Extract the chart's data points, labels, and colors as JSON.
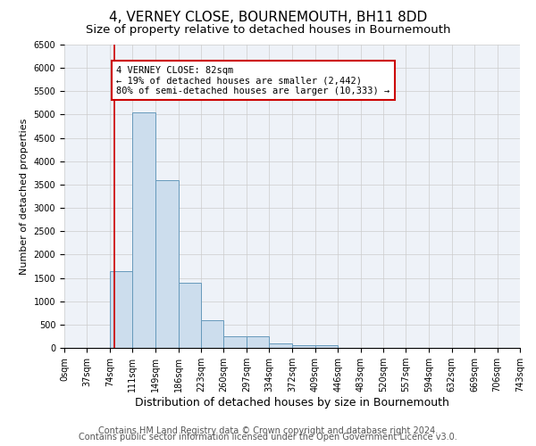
{
  "title": "4, VERNEY CLOSE, BOURNEMOUTH, BH11 8DD",
  "subtitle": "Size of property relative to detached houses in Bournemouth",
  "xlabel": "Distribution of detached houses by size in Bournemouth",
  "ylabel": "Number of detached properties",
  "footer_line1": "Contains HM Land Registry data © Crown copyright and database right 2024.",
  "footer_line2": "Contains public sector information licensed under the Open Government Licence v3.0.",
  "bin_edges": [
    0,
    37,
    74,
    111,
    149,
    186,
    223,
    260,
    297,
    334,
    372,
    409,
    446,
    483,
    520,
    557,
    594,
    632,
    669,
    706,
    743
  ],
  "bar_heights": [
    0,
    0,
    1650,
    5050,
    3600,
    1400,
    600,
    250,
    250,
    100,
    50,
    50,
    0,
    0,
    0,
    0,
    0,
    0,
    0,
    0
  ],
  "bar_color": "#ccdded",
  "bar_edge_color": "#6699bb",
  "grid_color": "#cccccc",
  "bg_color": "#eef2f8",
  "property_size": 82,
  "red_line_color": "#cc0000",
  "annotation_line1": "4 VERNEY CLOSE: 82sqm",
  "annotation_line2": "← 19% of detached houses are smaller (2,442)",
  "annotation_line3": "80% of semi-detached houses are larger (10,333) →",
  "annotation_box_color": "#ffffff",
  "annotation_box_edge": "#cc0000",
  "ylim": [
    0,
    6500
  ],
  "yticks": [
    0,
    500,
    1000,
    1500,
    2000,
    2500,
    3000,
    3500,
    4000,
    4500,
    5000,
    5500,
    6000,
    6500
  ],
  "title_fontsize": 11,
  "subtitle_fontsize": 9.5,
  "xlabel_fontsize": 9,
  "ylabel_fontsize": 8,
  "tick_fontsize": 7,
  "annotation_fontsize": 7.5,
  "footer_fontsize": 7
}
